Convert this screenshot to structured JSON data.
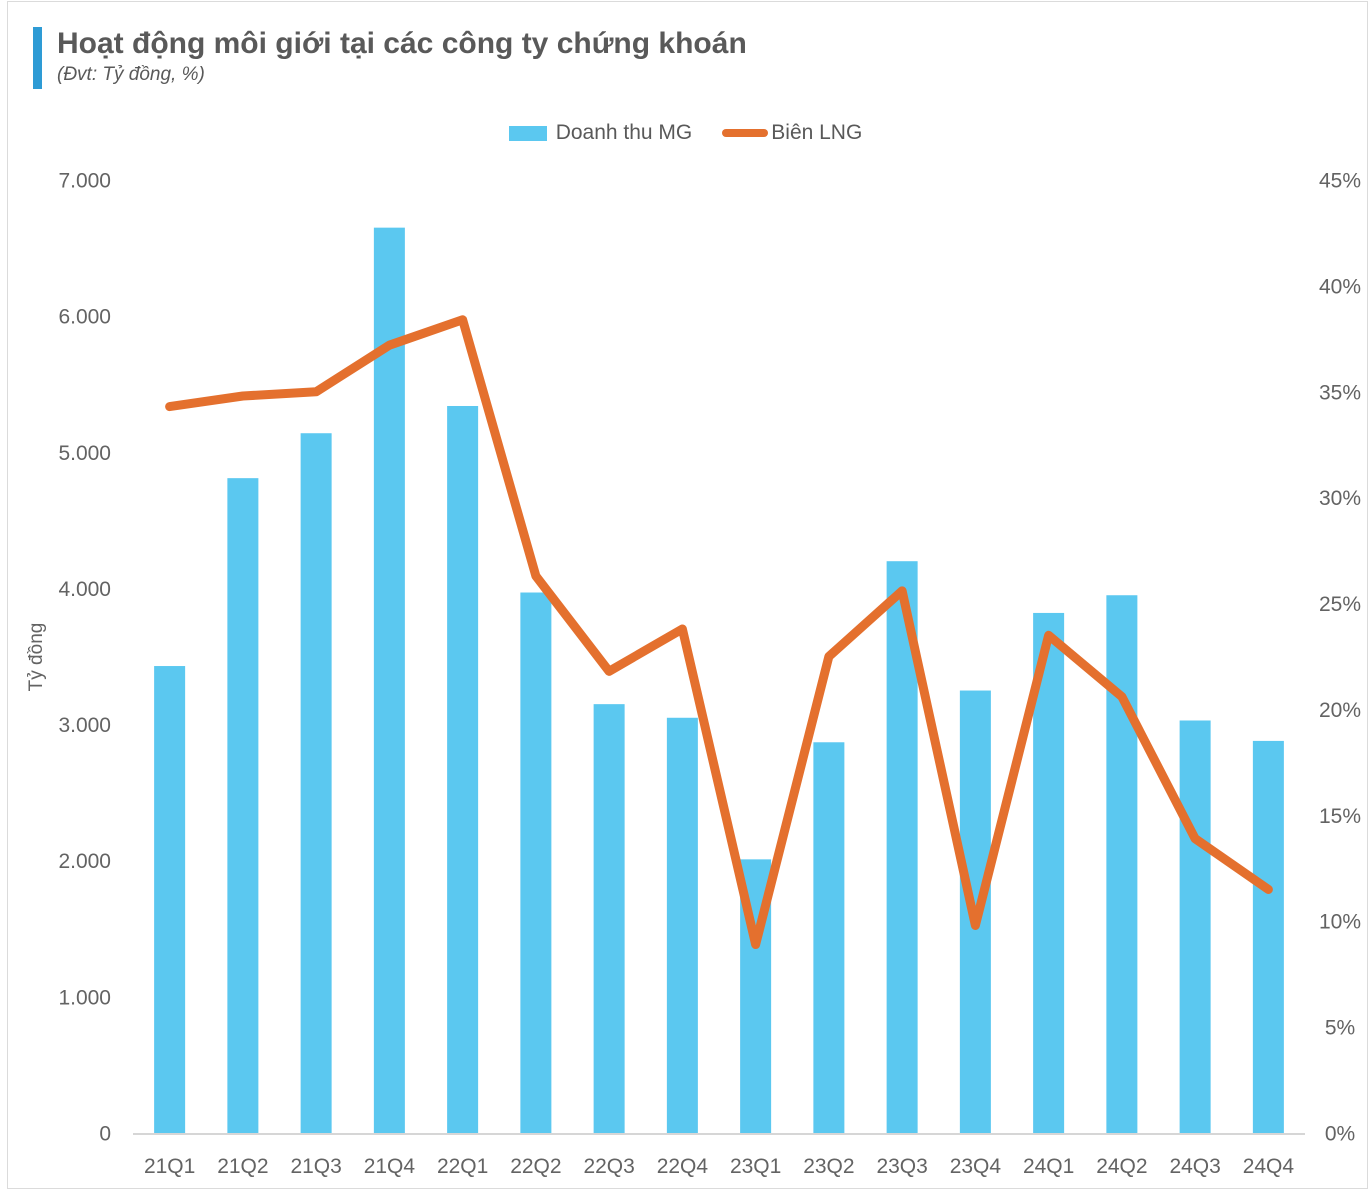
{
  "header": {
    "title": "Hoạt động môi giới tại các công ty chứng khoán",
    "subtitle": "(Đvt: Tỷ đồng, %)"
  },
  "legend": {
    "bar_label": "Doanh thu MG",
    "line_label": "Biên LNG"
  },
  "colors": {
    "bar": "#5BC8F0",
    "line": "#E4702E",
    "accent_bar": "#2E9BD5",
    "title_text": "#595959",
    "axis_text": "#636363",
    "axis_line": "#D6D6D6",
    "frame_border": "#DBDBDB"
  },
  "chart_data": {
    "type": "bar+line combo",
    "title": "Hoạt động môi giới tại các công ty chứng khoán",
    "subtitle": "(Đvt: Tỷ đồng, %)",
    "grid": false,
    "legend_position": "top",
    "categories": [
      "21Q1",
      "21Q2",
      "21Q3",
      "21Q4",
      "22Q1",
      "22Q2",
      "22Q3",
      "22Q4",
      "23Q1",
      "23Q2",
      "23Q3",
      "23Q4",
      "24Q1",
      "24Q2",
      "24Q3",
      "24Q4"
    ],
    "series": [
      {
        "name": "Doanh thu MG",
        "type": "bar",
        "axis": "left",
        "unit": "Tỷ đồng",
        "values": [
          3430,
          4810,
          5140,
          6650,
          5340,
          3970,
          3150,
          3050,
          2010,
          2870,
          4200,
          3250,
          3820,
          3950,
          3030,
          2880
        ]
      },
      {
        "name": "Biên LNG",
        "type": "line",
        "axis": "right",
        "unit": "%",
        "values": [
          34.3,
          34.8,
          35.0,
          37.2,
          38.4,
          26.3,
          21.8,
          23.8,
          8.9,
          22.5,
          25.6,
          9.8,
          23.5,
          20.6,
          13.9,
          11.5
        ]
      }
    ],
    "left_axis": {
      "title": "Tỷ đồng",
      "min": 0,
      "max": 7000,
      "tick_labels": [
        "0",
        "1.000",
        "2.000",
        "3.000",
        "4.000",
        "5.000",
        "6.000",
        "7.000"
      ]
    },
    "right_axis": {
      "title": "",
      "min": 0,
      "max": 45,
      "tick_labels": [
        "0%",
        "5%",
        "10%",
        "15%",
        "20%",
        "25%",
        "30%",
        "35%",
        "40%",
        "45%"
      ]
    }
  }
}
